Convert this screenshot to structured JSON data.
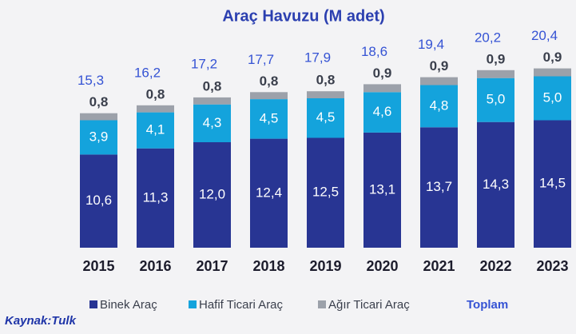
{
  "chart_data": {
    "type": "stacked-bar",
    "title": "Araç Havuzu (M adet)",
    "categories": [
      "2015",
      "2016",
      "2017",
      "2018",
      "2019",
      "2020",
      "2021",
      "2022",
      "2023"
    ],
    "series": [
      {
        "name": "Binek Araç",
        "color": "#283593",
        "values": [
          10.6,
          11.3,
          12.0,
          12.4,
          12.5,
          13.1,
          13.7,
          14.3,
          14.5
        ],
        "value_labels": [
          "10,6",
          "11,3",
          "12,0",
          "12,4",
          "12,5",
          "13,1",
          "13,7",
          "14,3",
          "14,5"
        ]
      },
      {
        "name": "Hafif Ticari Araç",
        "color": "#14a3dc",
        "values": [
          3.9,
          4.1,
          4.3,
          4.5,
          4.5,
          4.6,
          4.8,
          5.0,
          5.0
        ],
        "value_labels": [
          "3,9",
          "4,1",
          "4,3",
          "4,5",
          "4,5",
          "4,6",
          "4,8",
          "5,0",
          "5,0"
        ]
      },
      {
        "name": "Ağır Ticari Araç",
        "color": "#9ca1aa",
        "values": [
          0.8,
          0.8,
          0.8,
          0.8,
          0.8,
          0.9,
          0.9,
          0.9,
          0.9
        ],
        "value_labels": [
          "0,8",
          "0,8",
          "0,8",
          "0,8",
          "0,8",
          "0,9",
          "0,9",
          "0,9",
          "0,9"
        ]
      }
    ],
    "total_name": "Toplam",
    "totals": [
      15.3,
      16.2,
      17.2,
      17.7,
      17.9,
      18.6,
      19.4,
      20.2,
      20.4
    ],
    "total_labels": [
      "15,3",
      "16,2",
      "17,2",
      "17,7",
      "17,9",
      "18,6",
      "19,4",
      "20,2",
      "20,4"
    ],
    "ylim": [
      0,
      22
    ],
    "source": "Kaynak:Tulk"
  }
}
